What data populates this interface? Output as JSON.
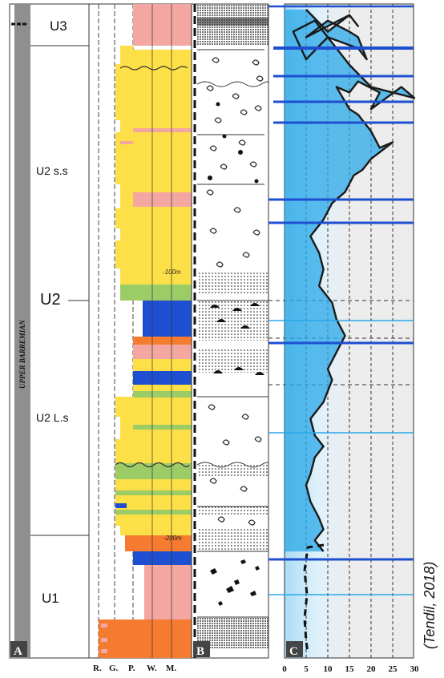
{
  "panels": {
    "a": "A",
    "b": "B",
    "c": "C"
  },
  "stage_label": "UPPER BARREMIAN",
  "units": {
    "u3": "U3",
    "u2_ss": "U2 s.s",
    "u2": "U2",
    "u2_ls": "U2 L.s",
    "u1": "U1"
  },
  "depth_labels": {
    "d100": "-100m",
    "d200": "-200m"
  },
  "texture_labels": [
    "R.",
    "G.",
    "P.",
    "W.",
    "M."
  ],
  "citation": "(Tendil, 2018)",
  "colors": {
    "pink": "#f4a6a0",
    "yellow": "#fde047",
    "green": "#9ccc65",
    "blue": "#1e4fd0",
    "orange": "#f47b30",
    "cyan_fill": "#29a8e8"
  },
  "chart_data": {
    "type": "area",
    "x_ticks": [
      0,
      5,
      10,
      15,
      20,
      25,
      30
    ],
    "xlim": [
      0,
      30
    ],
    "orientation": "vertical profile (value on x-axis, stratigraphic position on y-axis)",
    "series": [
      {
        "points": [
          [
            5,
            1
          ],
          [
            10,
            5
          ],
          [
            15,
            2
          ],
          [
            17,
            4
          ],
          [
            15,
            2
          ],
          [
            10,
            4
          ],
          [
            5,
            6
          ],
          [
            10,
            3
          ],
          [
            15,
            5
          ],
          [
            17,
            6
          ],
          [
            19,
            10
          ],
          [
            17,
            8
          ],
          [
            10,
            6
          ],
          [
            5,
            10
          ],
          [
            2,
            5
          ],
          [
            7,
            3
          ],
          [
            12,
            8
          ],
          [
            15,
            11
          ],
          [
            20,
            15
          ],
          [
            25,
            16
          ],
          [
            30,
            17
          ],
          [
            27,
            15
          ],
          [
            20,
            19
          ],
          [
            22,
            16
          ],
          [
            17,
            14
          ],
          [
            15,
            16
          ],
          [
            12,
            15
          ],
          [
            15,
            19
          ],
          [
            17,
            20
          ],
          [
            20,
            23
          ],
          [
            22,
            26
          ],
          [
            25,
            25
          ],
          [
            20,
            28
          ],
          [
            18,
            30
          ],
          [
            16,
            31
          ],
          [
            14,
            34
          ],
          [
            11,
            36
          ],
          [
            9,
            39
          ],
          [
            6,
            42
          ],
          [
            8,
            45
          ],
          [
            9,
            48
          ],
          [
            8,
            51
          ],
          [
            11,
            54
          ],
          [
            12,
            57
          ],
          [
            14,
            60
          ],
          [
            12,
            63
          ],
          [
            10,
            66
          ],
          [
            11,
            68
          ],
          [
            10,
            70
          ],
          [
            9,
            72
          ],
          [
            6,
            75
          ],
          [
            7,
            78
          ],
          [
            9,
            80
          ],
          [
            7,
            82
          ],
          [
            6,
            85
          ],
          [
            5,
            87
          ],
          [
            6,
            90
          ],
          [
            8,
            93
          ],
          [
            9,
            95
          ],
          [
            7,
            97
          ],
          [
            9,
            99
          ]
        ]
      }
    ]
  }
}
